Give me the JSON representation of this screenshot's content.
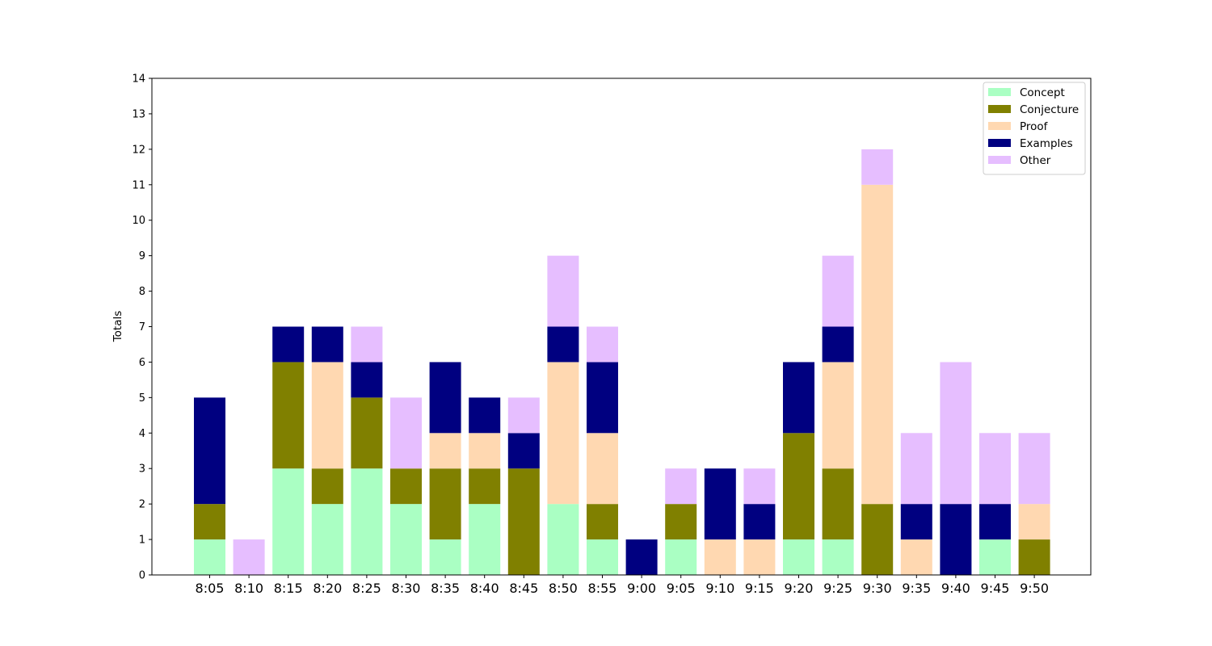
{
  "chart_data": {
    "type": "bar",
    "stacked": true,
    "title": "",
    "xlabel": "",
    "ylabel": "Totals",
    "ylim": [
      0,
      14
    ],
    "yticks": [
      0,
      1,
      2,
      3,
      4,
      5,
      6,
      7,
      8,
      9,
      10,
      11,
      12,
      13,
      14
    ],
    "grid": false,
    "legend_position": "top-right",
    "categories": [
      "8:05",
      "8:10",
      "8:15",
      "8:20",
      "8:25",
      "8:30",
      "8:35",
      "8:40",
      "8:45",
      "8:50",
      "8:55",
      "9:00",
      "9:05",
      "9:10",
      "9:15",
      "9:20",
      "9:25",
      "9:30",
      "9:35",
      "9:40",
      "9:45",
      "9:50"
    ],
    "series": [
      {
        "name": "Concept",
        "color": "#aaffc3",
        "values": [
          1,
          0,
          3,
          2,
          3,
          2,
          1,
          2,
          0,
          2,
          1,
          0,
          1,
          0,
          0,
          1,
          1,
          0,
          0,
          0,
          1,
          0
        ]
      },
      {
        "name": "Conjecture",
        "color": "#808000",
        "values": [
          1,
          0,
          3,
          1,
          2,
          1,
          2,
          1,
          3,
          0,
          1,
          0,
          1,
          0,
          0,
          3,
          2,
          2,
          0,
          0,
          0,
          1
        ]
      },
      {
        "name": "Proof",
        "color": "#ffd8b1",
        "values": [
          0,
          0,
          0,
          3,
          0,
          0,
          1,
          1,
          0,
          4,
          2,
          0,
          0,
          1,
          1,
          0,
          3,
          9,
          1,
          0,
          0,
          1
        ]
      },
      {
        "name": "Examples",
        "color": "#000080",
        "values": [
          3,
          0,
          1,
          1,
          1,
          0,
          2,
          1,
          1,
          1,
          2,
          1,
          0,
          2,
          1,
          2,
          1,
          0,
          1,
          2,
          1,
          0
        ]
      },
      {
        "name": "Other",
        "color": "#e6beff",
        "values": [
          0,
          1,
          0,
          0,
          1,
          2,
          0,
          0,
          1,
          2,
          1,
          0,
          1,
          0,
          1,
          0,
          2,
          1,
          2,
          4,
          2,
          2
        ]
      }
    ]
  }
}
